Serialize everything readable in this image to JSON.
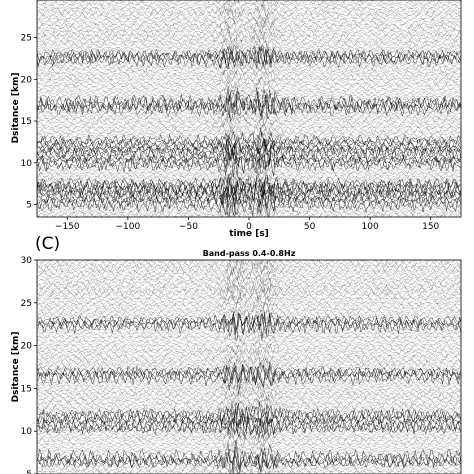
{
  "chart_data": [
    {
      "type": "line",
      "title": "",
      "xlabel": "time [s]",
      "ylabel": "Dsitance [km]",
      "xlim": [
        -175,
        175
      ],
      "ylim": [
        3.5,
        29.5
      ],
      "xticks": [
        -150,
        -100,
        -50,
        0,
        50,
        100,
        150
      ],
      "xtick_labels": [
        "−150",
        "−100",
        "−50",
        "0",
        "50",
        "100",
        "150"
      ],
      "yticks": [
        5,
        10,
        15,
        20,
        25
      ],
      "ytick_labels": [
        "5",
        "10",
        "15",
        "20",
        "25"
      ],
      "grid": false,
      "trace_spacing_km": 0.25,
      "dense_bands_km": [
        5.2,
        6.4,
        7.2,
        10.1,
        11.3,
        12.4,
        16.8,
        22.7
      ],
      "arrival_times_s": [
        -15,
        12
      ]
    },
    {
      "type": "line",
      "panel_label": "(C)",
      "title": "Band-pass 0.4-0.8Hz",
      "xlabel": "",
      "ylabel": "Dsitance [km]",
      "xlim": [
        -175,
        175
      ],
      "ylim": [
        5,
        30
      ],
      "yticks": [
        5,
        10,
        15,
        20,
        25,
        30
      ],
      "ytick_labels": [
        "5",
        "10",
        "15",
        "20",
        "25",
        "30"
      ],
      "grid": false,
      "trace_spacing_km": 0.25,
      "dense_bands_km": [
        6.6,
        10.5,
        11.6,
        16.7,
        22.7
      ],
      "arrival_times_s": [
        -12,
        12
      ]
    }
  ]
}
